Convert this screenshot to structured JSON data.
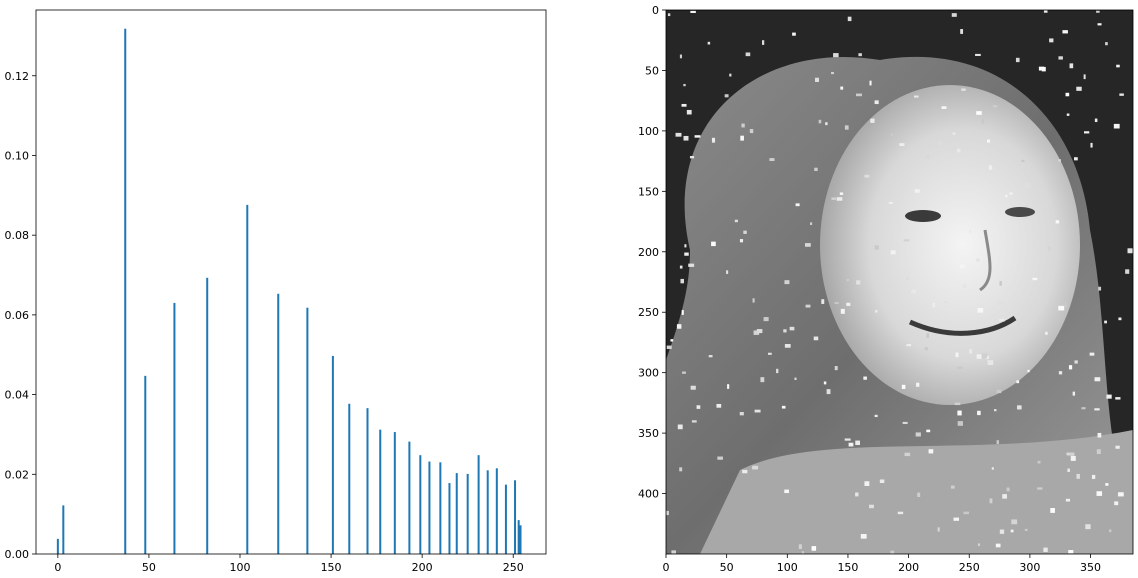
{
  "chart_data": [
    {
      "type": "bar",
      "title": "",
      "xlabel": "",
      "ylabel": "",
      "xlim": [
        -12,
        268
      ],
      "ylim": [
        0,
        0.1365
      ],
      "grid": false,
      "color": "#1f77b4",
      "xticks": [
        0,
        50,
        100,
        150,
        200,
        250
      ],
      "yticks": [
        0.0,
        0.02,
        0.04,
        0.06,
        0.08,
        0.1,
        0.12
      ],
      "ytick_labels": [
        "0.00",
        "0.02",
        "0.04",
        "0.06",
        "0.08",
        "0.10",
        "0.12"
      ],
      "x": [
        0,
        3,
        37,
        48,
        64,
        82,
        104,
        121,
        137,
        151,
        160,
        170,
        177,
        185,
        193,
        199,
        204,
        210,
        215,
        219,
        225,
        231,
        236,
        241,
        246,
        251,
        253,
        254
      ],
      "values": [
        0.0038,
        0.0122,
        0.1318,
        0.0447,
        0.063,
        0.0693,
        0.0876,
        0.0653,
        0.0618,
        0.0497,
        0.0377,
        0.0366,
        0.0312,
        0.0306,
        0.0282,
        0.0248,
        0.0232,
        0.023,
        0.0178,
        0.0203,
        0.0201,
        0.0248,
        0.021,
        0.0215,
        0.0174,
        0.0185,
        0.0085,
        0.0072
      ]
    },
    {
      "type": "heatmap",
      "colormap": "gray",
      "title": "",
      "xlim": [
        0,
        385
      ],
      "ylim": [
        450,
        0
      ],
      "xticks": [
        0,
        50,
        100,
        150,
        200,
        250,
        300,
        350
      ],
      "yticks": [
        0,
        50,
        100,
        150,
        200,
        250,
        300,
        350,
        400
      ],
      "content": "grayscale photograph of a smiling woman with long hair, speckled with bright noise"
    }
  ]
}
